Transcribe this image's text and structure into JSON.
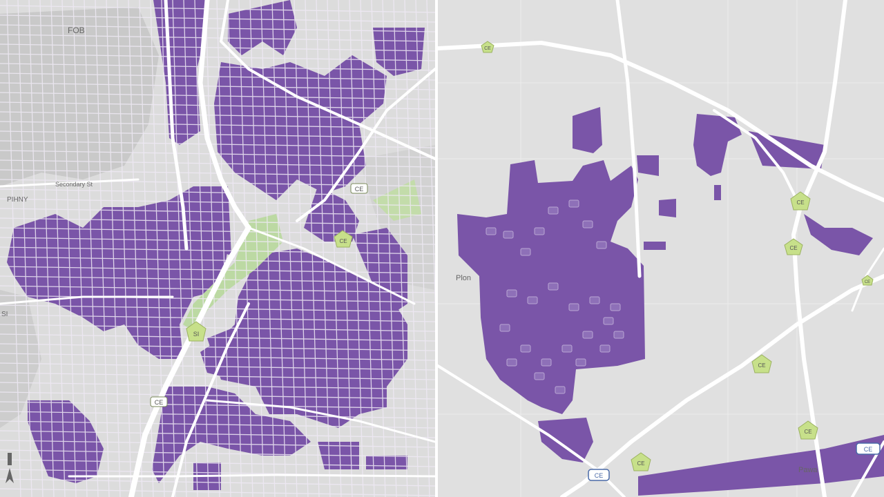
{
  "colors": {
    "land_left": "#d9d9d9",
    "land_right": "#e1e1e1",
    "water": "#c6c6c6",
    "road": "#f7f7f7",
    "highway": "#ffffff",
    "coverage": "#7a55a8",
    "coverage_dark": "#654596",
    "park": "#bcd9a3",
    "shield": "#c7e08a"
  },
  "left_map": {
    "labels": {
      "water_label": "FOB",
      "street_1": "Secondary St",
      "area_1": "PIHNY",
      "edge_label": "SI"
    },
    "shields": [
      "CE",
      "CE",
      "SI",
      "CE"
    ],
    "north_arrow": "north-arrow-icon"
  },
  "right_map": {
    "labels": {
      "area_1": "Plon",
      "road_1": "Pawa",
      "badge": "CE"
    },
    "shields": [
      "CE",
      "CE",
      "CE",
      "CE",
      "CE",
      "CE",
      "CE"
    ]
  }
}
